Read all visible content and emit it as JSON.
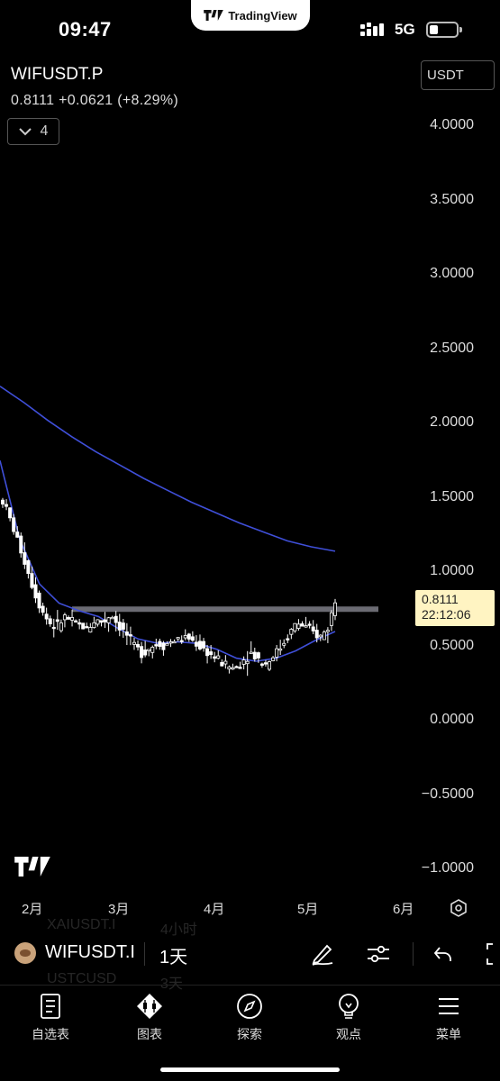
{
  "status_bar": {
    "time": "09:47",
    "brand": "TradingView",
    "network": "5G"
  },
  "header": {
    "symbol": "WIFUSDT.P",
    "quote": "0.8111 +0.0621 (+8.29%)",
    "collapse_count": "4",
    "currency": "USDT"
  },
  "chart_data": {
    "type": "candlestick",
    "y_ticks": [
      "4.0000",
      "3.5000",
      "3.0000",
      "2.5000",
      "2.0000",
      "1.5000",
      "1.0000",
      "0.5000",
      "0.0000",
      "−0.5000",
      "−1.0000"
    ],
    "x_ticks": [
      "2月",
      "3月",
      "4月",
      "5月",
      "6月"
    ],
    "ylim": [
      -1.0,
      4.0
    ],
    "last_price": "0.8111",
    "countdown": "22:12:06",
    "horizontal_level": 0.75,
    "series": [
      {
        "name": "",
        "kind": "ma_slow",
        "color": "#3f4fd8",
        "values": [
          2.25,
          2.14,
          2.02,
          1.91,
          1.81,
          1.72,
          1.63,
          1.55,
          1.47,
          1.4,
          1.33,
          1.27,
          1.21,
          1.17,
          1.14
        ]
      },
      {
        "name": "",
        "kind": "ma_fast",
        "color": "#3f4fd8",
        "values": [
          1.75,
          1.22,
          0.92,
          0.79,
          0.74,
          0.7,
          0.62,
          0.55,
          0.52,
          0.53,
          0.52,
          0.48,
          0.42,
          0.4,
          0.42,
          0.47,
          0.54,
          0.6
        ]
      }
    ],
    "candle_path": [
      1.48,
      1.35,
      1.2,
      1.05,
      0.88,
      0.75,
      0.66,
      0.63,
      0.7,
      0.66,
      0.64,
      0.62,
      0.68,
      0.66,
      0.72,
      0.64,
      0.58,
      0.5,
      0.46,
      0.49,
      0.52,
      0.51,
      0.54,
      0.55,
      0.56,
      0.52,
      0.48,
      0.44,
      0.4,
      0.37,
      0.35,
      0.4,
      0.46,
      0.42,
      0.38,
      0.44,
      0.5,
      0.58,
      0.66,
      0.63,
      0.6,
      0.56,
      0.62,
      0.81
    ]
  },
  "toolbar": {
    "symbol": "WIFUSDT.I",
    "interval": "1天",
    "ghost_top": "XAIUSDT.I",
    "ghost_top_interval": "4小时",
    "ghost_bottom": "USTCUSD",
    "ghost_bottom_interval": "3天"
  },
  "nav": {
    "watchlist": "自选表",
    "chart": "图表",
    "explore": "探索",
    "ideas": "观点",
    "menu": "菜单"
  }
}
